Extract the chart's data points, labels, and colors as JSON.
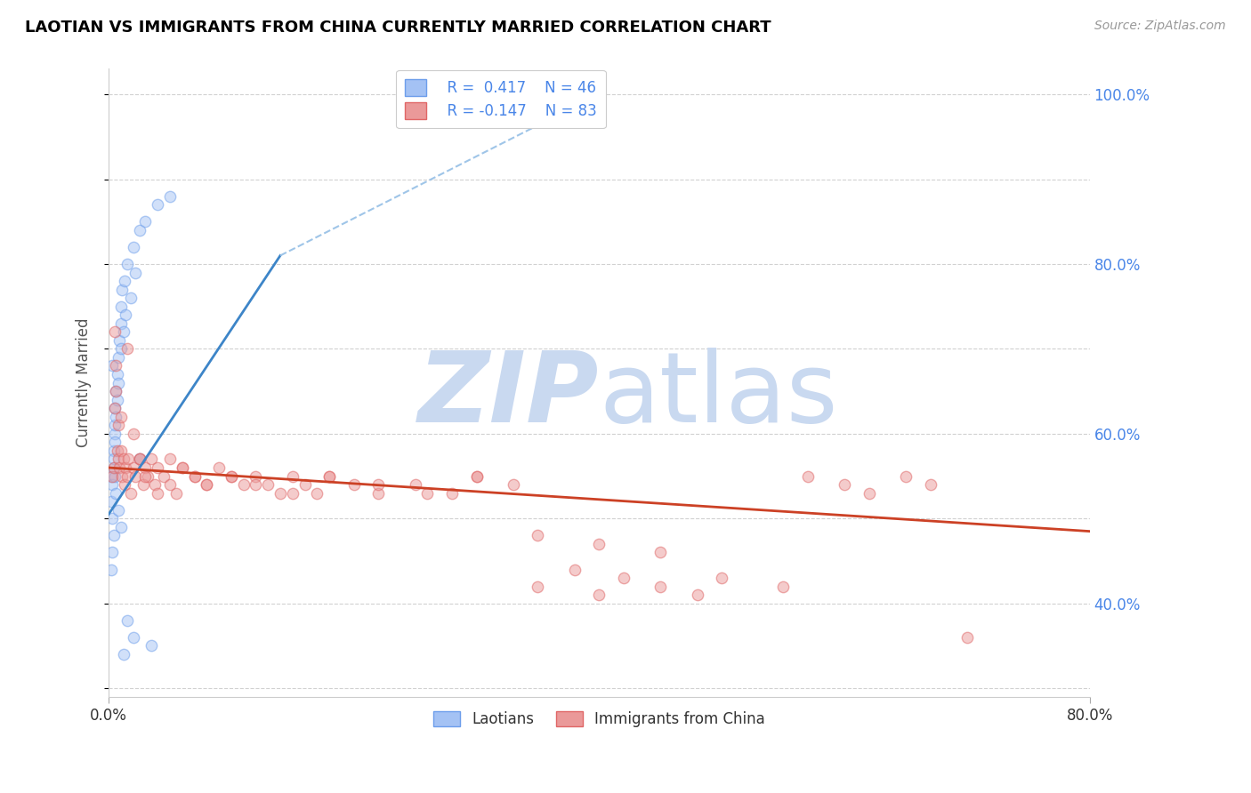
{
  "title": "LAOTIAN VS IMMIGRANTS FROM CHINA CURRENTLY MARRIED CORRELATION CHART",
  "source": "Source: ZipAtlas.com",
  "ylabel": "Currently Married",
  "blue_color": "#a4c2f4",
  "blue_edge_color": "#6d9eeb",
  "pink_color": "#ea9999",
  "pink_edge_color": "#e06666",
  "blue_line_color": "#3d85c8",
  "pink_line_color": "#cc4125",
  "dash_line_color": "#9fc5e8",
  "watermark_zip_color": "#c9d9f0",
  "watermark_atlas_color": "#c9d9f0",
  "background_color": "#ffffff",
  "grid_color": "#cccccc",
  "right_label_color": "#4a86e8",
  "title_color": "#000000",
  "source_color": "#999999",
  "legend_r_color": "#000000",
  "legend_n_color": "#4a86e8",
  "blue_scatter_x": [
    0.2,
    0.3,
    0.4,
    0.5,
    0.5,
    0.6,
    0.7,
    0.8,
    0.9,
    1.0,
    1.0,
    1.1,
    1.3,
    1.5,
    2.0,
    2.2,
    2.5,
    3.0,
    4.0,
    5.0,
    0.2,
    0.3,
    0.4,
    0.4,
    0.5,
    0.6,
    0.7,
    0.8,
    1.0,
    1.2,
    1.4,
    1.8,
    2.5,
    3.5,
    0.2,
    0.3,
    0.5,
    0.6,
    0.8,
    1.0,
    1.5,
    2.0,
    0.3,
    0.4,
    0.5,
    1.2
  ],
  "blue_scatter_y": [
    55.0,
    54.0,
    56.0,
    60.0,
    63.0,
    65.0,
    67.0,
    69.0,
    71.0,
    73.0,
    75.0,
    77.0,
    78.0,
    80.0,
    82.0,
    79.0,
    84.0,
    85.0,
    87.0,
    88.0,
    52.0,
    50.0,
    48.0,
    58.0,
    61.0,
    62.0,
    64.0,
    66.0,
    70.0,
    72.0,
    74.0,
    76.0,
    57.0,
    35.0,
    44.0,
    46.0,
    55.0,
    53.0,
    51.0,
    49.0,
    38.0,
    36.0,
    68.0,
    57.0,
    59.0,
    34.0
  ],
  "pink_scatter_x": [
    0.3,
    0.4,
    0.5,
    0.6,
    0.7,
    0.8,
    0.9,
    1.0,
    1.1,
    1.2,
    1.3,
    1.4,
    1.5,
    1.6,
    1.8,
    2.0,
    2.2,
    2.5,
    2.8,
    3.0,
    3.2,
    3.5,
    3.8,
    4.0,
    4.5,
    5.0,
    5.5,
    6.0,
    7.0,
    8.0,
    9.0,
    10.0,
    11.0,
    12.0,
    13.0,
    14.0,
    15.0,
    16.0,
    17.0,
    18.0,
    20.0,
    22.0,
    25.0,
    28.0,
    30.0,
    33.0,
    35.0,
    38.0,
    40.0,
    42.0,
    45.0,
    48.0,
    50.0,
    55.0,
    57.0,
    60.0,
    62.0,
    65.0,
    67.0,
    70.0,
    0.5,
    0.6,
    0.8,
    1.0,
    1.5,
    2.0,
    2.5,
    3.0,
    4.0,
    5.0,
    6.0,
    7.0,
    8.0,
    10.0,
    12.0,
    15.0,
    18.0,
    22.0,
    26.0,
    30.0,
    35.0,
    40.0,
    45.0
  ],
  "pink_scatter_y": [
    55.0,
    56.0,
    72.0,
    68.0,
    58.0,
    57.0,
    56.0,
    58.0,
    55.0,
    57.0,
    54.0,
    56.0,
    55.0,
    57.0,
    53.0,
    56.0,
    55.0,
    57.0,
    54.0,
    56.0,
    55.0,
    57.0,
    54.0,
    56.0,
    55.0,
    57.0,
    53.0,
    56.0,
    55.0,
    54.0,
    56.0,
    55.0,
    54.0,
    55.0,
    54.0,
    53.0,
    55.0,
    54.0,
    53.0,
    55.0,
    54.0,
    53.0,
    54.0,
    53.0,
    55.0,
    54.0,
    42.0,
    44.0,
    41.0,
    43.0,
    42.0,
    41.0,
    43.0,
    42.0,
    55.0,
    54.0,
    53.0,
    55.0,
    54.0,
    36.0,
    63.0,
    65.0,
    61.0,
    62.0,
    70.0,
    60.0,
    57.0,
    55.0,
    53.0,
    54.0,
    56.0,
    55.0,
    54.0,
    55.0,
    54.0,
    53.0,
    55.0,
    54.0,
    53.0,
    55.0,
    48.0,
    47.0,
    46.0
  ],
  "xlim": [
    0,
    80
  ],
  "ylim": [
    29,
    103
  ],
  "blue_line_x": [
    0.0,
    14.0
  ],
  "blue_line_y": [
    50.5,
    81.0
  ],
  "pink_line_x": [
    0.0,
    80.0
  ],
  "pink_line_y": [
    56.0,
    48.5
  ],
  "dash_line_x": [
    14.0,
    40.0
  ],
  "dash_line_y": [
    81.0,
    100.0
  ],
  "marker_size": 80,
  "alpha_scatter": 0.5,
  "blue_lw": 2.0,
  "pink_lw": 2.0,
  "dash_lw": 1.5
}
